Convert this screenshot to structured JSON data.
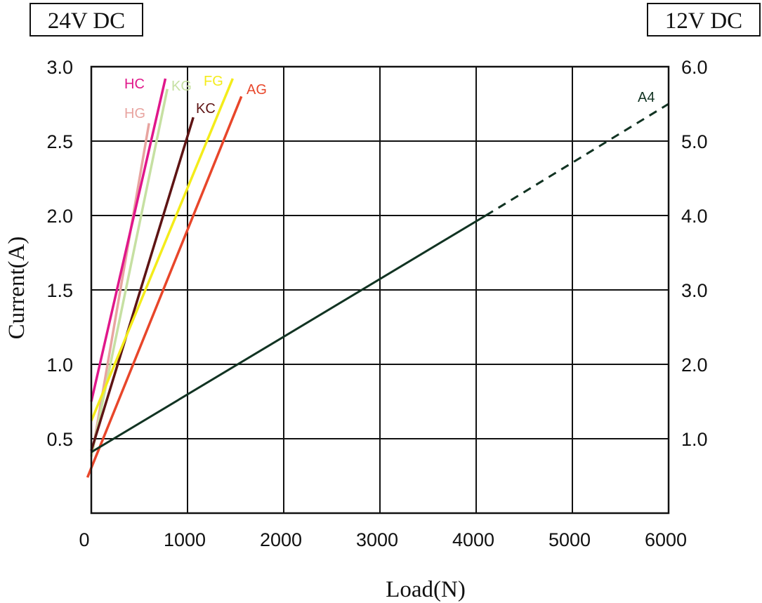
{
  "chart_data": {
    "type": "line",
    "xlabel": "Load(N)",
    "ylabel": "Current(A)",
    "left_axis_title": "24V DC",
    "right_axis_title": "12V DC",
    "xlim": [
      0,
      6000
    ],
    "ylim": [
      0,
      3.0
    ],
    "y2lim": [
      0,
      6.0
    ],
    "x_ticks": [
      "0",
      "1000",
      "2000",
      "3000",
      "4000",
      "5000",
      "6000"
    ],
    "x_tick_values": [
      0,
      1000,
      2000,
      3000,
      4000,
      5000,
      6000
    ],
    "y_ticks": [
      "0.5",
      "1.0",
      "1.5",
      "2.0",
      "2.5",
      "3.0"
    ],
    "y_tick_values": [
      0.5,
      1.0,
      1.5,
      2.0,
      2.5,
      3.0
    ],
    "y2_ticks": [
      "1.0",
      "2.0",
      "3.0",
      "4.0",
      "5.0",
      "6.0"
    ],
    "y2_tick_values": [
      1.0,
      2.0,
      3.0,
      4.0,
      5.0,
      6.0
    ],
    "grid": true,
    "series": [
      {
        "name": "HG",
        "color": "#e8a4a0",
        "x": [
          20,
          600
        ],
        "y": [
          0.44,
          2.62
        ]
      },
      {
        "name": "HC",
        "color": "#e0178a",
        "x": [
          0,
          770
        ],
        "y": [
          0.75,
          2.92
        ]
      },
      {
        "name": "KG",
        "color": "#c6e0a2",
        "x": [
          0,
          790
        ],
        "y": [
          0.38,
          2.85
        ]
      },
      {
        "name": "KC",
        "color": "#5e1414",
        "x": [
          0,
          1060
        ],
        "y": [
          0.42,
          2.66
        ]
      },
      {
        "name": "FG",
        "color": "#f4ec1a",
        "x": [
          0,
          1470
        ],
        "y": [
          0.62,
          2.92
        ]
      },
      {
        "name": "AG",
        "color": "#e8462a",
        "x": [
          -40,
          1560
        ],
        "y": [
          0.24,
          2.8
        ]
      },
      {
        "name": "A4",
        "color": "#113322",
        "axis": "right",
        "x": [
          0,
          4100,
          6000
        ],
        "y": [
          0.82,
          4.0,
          5.5
        ],
        "dashed_from_x": 4100
      }
    ]
  }
}
